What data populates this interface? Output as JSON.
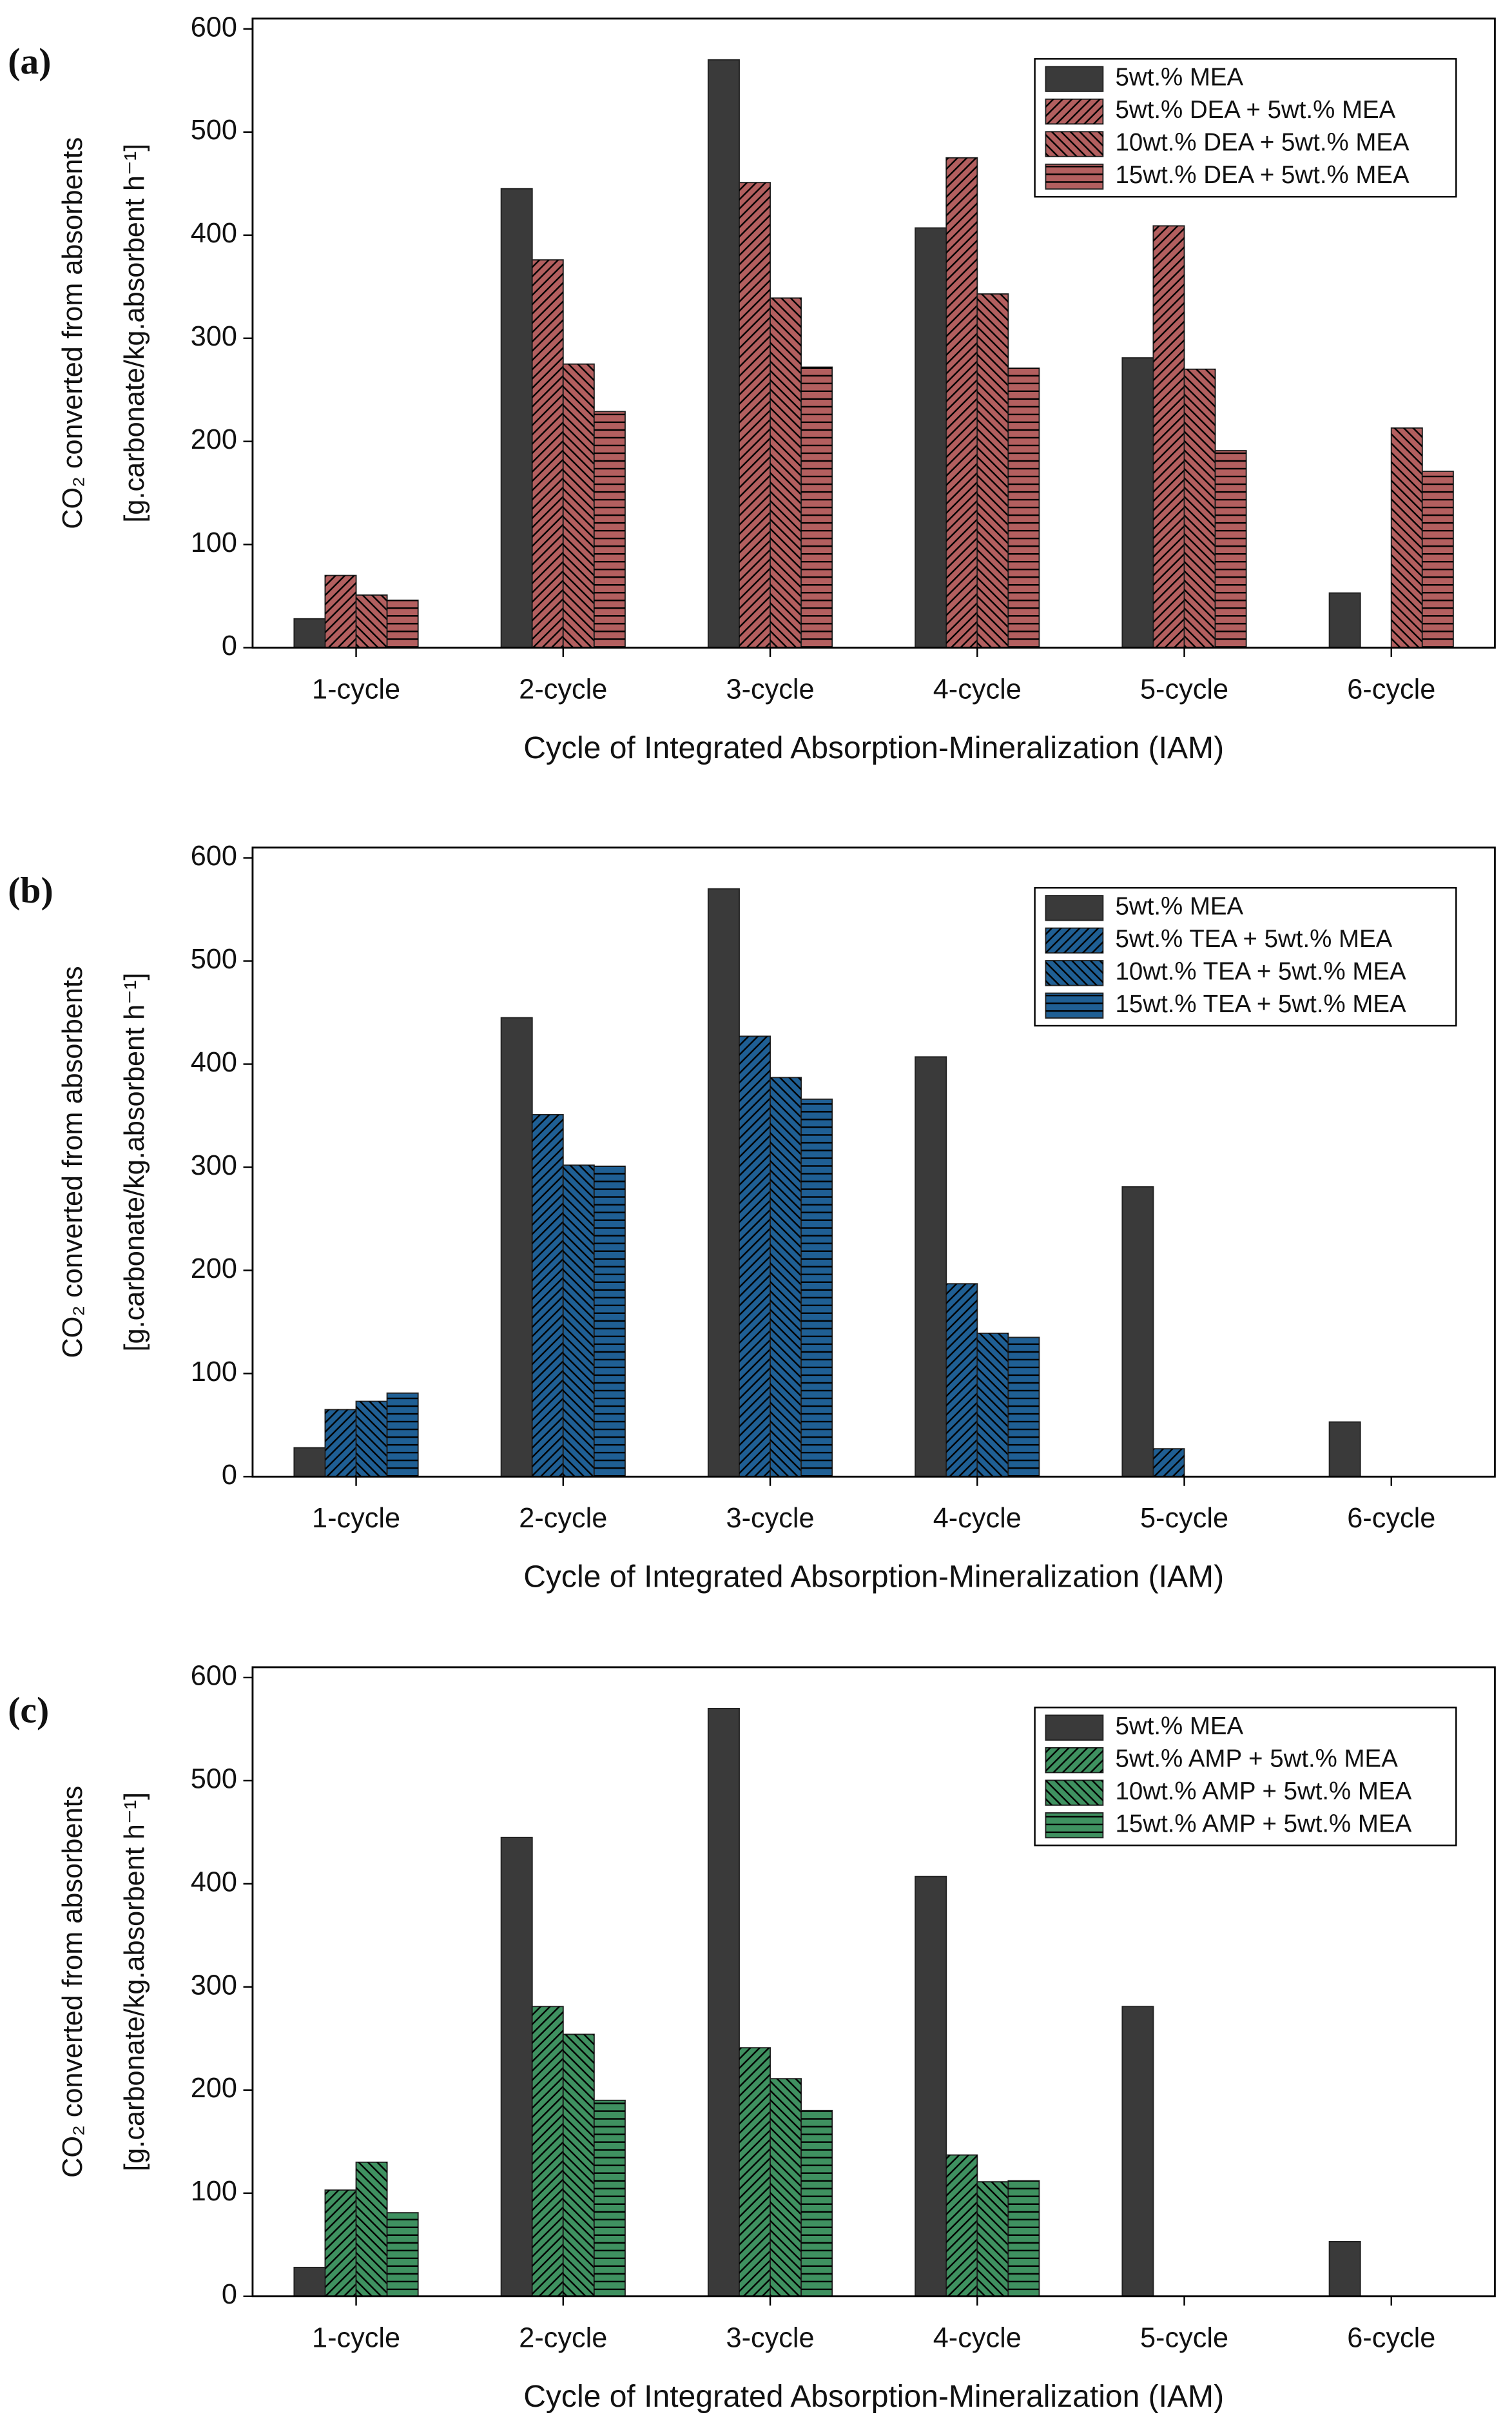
{
  "chart_data": [
    {
      "type": "bar",
      "panel_label": "(a)",
      "ylabel": "CO₂ converted from absorbents",
      "ylabel2": "[g.carbonate/kg.absorbent h⁻¹]",
      "xlabel": "Cycle of Integrated Absorption-Mineralization (IAM)",
      "categories": [
        "1-cycle",
        "2-cycle",
        "3-cycle",
        "4-cycle",
        "5-cycle",
        "6-cycle"
      ],
      "ylim": [
        0,
        610
      ],
      "yticks": [
        0,
        100,
        200,
        300,
        400,
        500,
        600
      ],
      "legend": "upper right",
      "series": [
        {
          "name": "5wt.% MEA",
          "color": "#3a3a3a",
          "values": [
            28,
            445,
            570,
            407,
            281,
            53
          ]
        },
        {
          "name": "5wt.% DEA + 5wt.% MEA",
          "color": "#b35f5f",
          "values": [
            70,
            376,
            451,
            475,
            409,
            null
          ]
        },
        {
          "name": "10wt.% DEA + 5wt.% MEA",
          "color": "#b35f5f",
          "values": [
            51,
            275,
            339,
            343,
            270,
            213
          ]
        },
        {
          "name": "15wt.% DEA + 5wt.% MEA",
          "color": "#b35f5f",
          "values": [
            46,
            229,
            272,
            271,
            191,
            171
          ]
        }
      ]
    },
    {
      "type": "bar",
      "panel_label": "(b)",
      "ylabel": "CO₂ converted from absorbents",
      "ylabel2": "[g.carbonate/kg.absorbent h⁻¹]",
      "xlabel": "Cycle of Integrated Absorption-Mineralization (IAM)",
      "categories": [
        "1-cycle",
        "2-cycle",
        "3-cycle",
        "4-cycle",
        "5-cycle",
        "6-cycle"
      ],
      "ylim": [
        0,
        610
      ],
      "yticks": [
        0,
        100,
        200,
        300,
        400,
        500,
        600
      ],
      "legend": "upper right",
      "series": [
        {
          "name": "5wt.% MEA",
          "color": "#3a3a3a",
          "values": [
            28,
            445,
            570,
            407,
            281,
            53
          ]
        },
        {
          "name": "5wt.% TEA + 5wt.% MEA",
          "color": "#1f5f94",
          "values": [
            65,
            351,
            427,
            187,
            27,
            null
          ]
        },
        {
          "name": "10wt.% TEA + 5wt.% MEA",
          "color": "#1f5f94",
          "values": [
            73,
            302,
            387,
            139,
            null,
            null
          ]
        },
        {
          "name": "15wt.% TEA + 5wt.% MEA",
          "color": "#1f5f94",
          "values": [
            81,
            301,
            366,
            135,
            null,
            null
          ]
        }
      ]
    },
    {
      "type": "bar",
      "panel_label": "(c)",
      "ylabel": "CO₂ converted from absorbents",
      "ylabel2": "[g.carbonate/kg.absorbent h⁻¹]",
      "xlabel": "Cycle of Integrated Absorption-Mineralization (IAM)",
      "categories": [
        "1-cycle",
        "2-cycle",
        "3-cycle",
        "4-cycle",
        "5-cycle",
        "6-cycle"
      ],
      "ylim": [
        0,
        610
      ],
      "yticks": [
        0,
        100,
        200,
        300,
        400,
        500,
        600
      ],
      "legend": "upper right",
      "series": [
        {
          "name": "5wt.% MEA",
          "color": "#3a3a3a",
          "values": [
            28,
            445,
            570,
            407,
            281,
            53
          ]
        },
        {
          "name": "5wt.% AMP + 5wt.% MEA",
          "color": "#3f9160",
          "values": [
            103,
            281,
            241,
            137,
            null,
            null
          ]
        },
        {
          "name": "10wt.% AMP + 5wt.% MEA",
          "color": "#3f9160",
          "values": [
            130,
            254,
            211,
            111,
            null,
            null
          ]
        },
        {
          "name": "15wt.% AMP + 5wt.% MEA",
          "color": "#3f9160",
          "values": [
            81,
            190,
            180,
            112,
            null,
            null
          ]
        }
      ]
    }
  ]
}
